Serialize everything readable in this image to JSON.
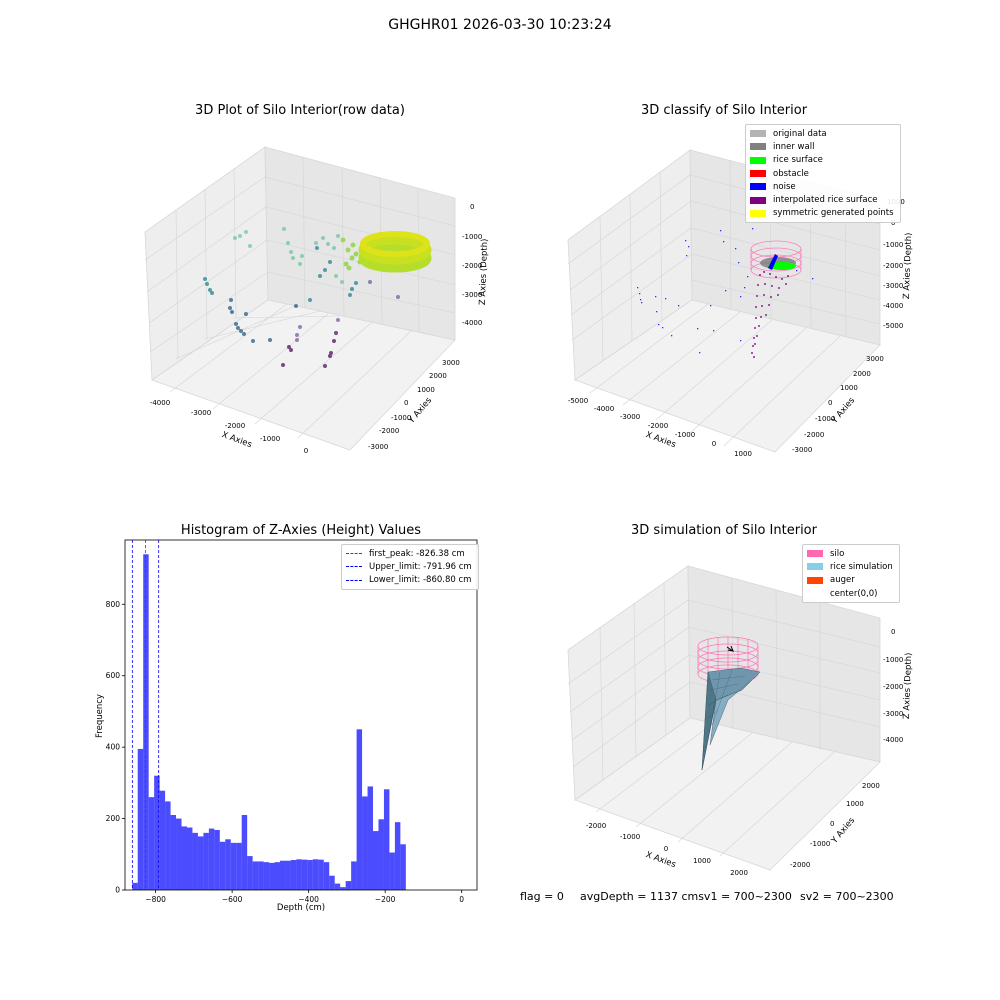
{
  "suptitle": "GHGHR01 2026-03-30 10:23:24",
  "status": {
    "flag": "flag = 0",
    "avg": "avgDepth = 1137 cmsv1 = 700~2300",
    "sv2": "sv2 = 700~2300"
  },
  "chart_data": [
    {
      "type": "scatter",
      "title": "3D Plot of Silo Interior(row data)",
      "xlabel": "X Axies",
      "ylabel": "Y Axies",
      "zlabel": "Z Axies (Depth)",
      "x_ticks": [
        "-4000",
        "-3000",
        "-2000",
        "-1000",
        "0"
      ],
      "y_ticks": [
        "-3000",
        "-2000",
        "-1000",
        "0",
        "1000",
        "2000",
        "3000"
      ],
      "z_ticks": [
        "0",
        "-1000",
        "-2000",
        "-3000",
        "-4000"
      ],
      "colormap": "viridis (by depth)"
    },
    {
      "type": "scatter",
      "title": "3D classify of Silo Interior",
      "xlabel": "X Axies",
      "ylabel": "Y Axies",
      "zlabel": "Z Axies (Depth)",
      "x_ticks": [
        "-5000",
        "-4000",
        "-3000",
        "-2000",
        "-1000",
        "0",
        "1000"
      ],
      "y_ticks": [
        "-3000",
        "-2000",
        "-1000",
        "0",
        "1000",
        "2000",
        "3000"
      ],
      "z_ticks": [
        "1000",
        "0",
        "-1000",
        "-2000",
        "-3000",
        "-4000",
        "-5000"
      ],
      "legend": [
        {
          "label": "original data",
          "color": "#b3b3b3"
        },
        {
          "label": "inner wall",
          "color": "#808080"
        },
        {
          "label": "rice surface",
          "color": "#00ff00"
        },
        {
          "label": "obstacle",
          "color": "#ff0000"
        },
        {
          "label": "noise",
          "color": "#0000ff"
        },
        {
          "label": "interpolated rice surface",
          "color": "#800080"
        },
        {
          "label": "symmetric generated points",
          "color": "#ffff00"
        }
      ]
    },
    {
      "type": "bar",
      "title": "Histogram of Z-Axies (Height) Values",
      "xlabel": "Depth (cm)",
      "ylabel": "Frequency",
      "bar_color": "#0000ff",
      "bar_alpha": 0.7,
      "bin_width": 14.3,
      "x_start": -861,
      "xlim": [
        -880,
        40
      ],
      "ylim": [
        0,
        980
      ],
      "x_ticks": [
        -800,
        -600,
        -400,
        -200,
        0
      ],
      "y_ticks": [
        0,
        200,
        400,
        600,
        800
      ],
      "values": [
        20,
        395,
        940,
        260,
        320,
        278,
        248,
        210,
        200,
        178,
        175,
        160,
        150,
        160,
        172,
        168,
        135,
        142,
        132,
        132,
        210,
        95,
        80,
        80,
        78,
        76,
        78,
        82,
        82,
        84,
        86,
        85,
        84,
        86,
        85,
        78,
        40,
        18,
        8,
        25,
        80,
        450,
        262,
        290,
        165,
        198,
        282,
        105,
        190,
        128
      ],
      "vlines": [
        {
          "value": -826.38,
          "color": "#ff0000",
          "label": "first_peak: -826.38 cm"
        },
        {
          "value": -791.96,
          "color": "#0000ff",
          "label": "Upper_limit: -791.96 cm"
        },
        {
          "value": -860.8,
          "color": "#0000ff",
          "label": "Lower_limit: -860.80 cm"
        }
      ],
      "legend_position": "upper right"
    },
    {
      "type": "surface",
      "title": "3D simulation of Silo Interior",
      "xlabel": "X Axies",
      "ylabel": "Y Axies",
      "zlabel": "Z Axies (Depth)",
      "x_ticks": [
        "-2000",
        "-1000",
        "0",
        "1000",
        "2000"
      ],
      "y_ticks": [
        "-2000",
        "-1000",
        "0",
        "1000",
        "2000"
      ],
      "z_ticks": [
        "0",
        "-1000",
        "-2000",
        "-3000",
        "-4000"
      ],
      "legend": [
        {
          "label": "silo",
          "color": "#ff69b4"
        },
        {
          "label": "rice simulation",
          "color": "#87ceeb"
        },
        {
          "label": "auger",
          "color": "#ff4500"
        },
        {
          "label": "center(0,0)",
          "color": ""
        }
      ]
    }
  ]
}
